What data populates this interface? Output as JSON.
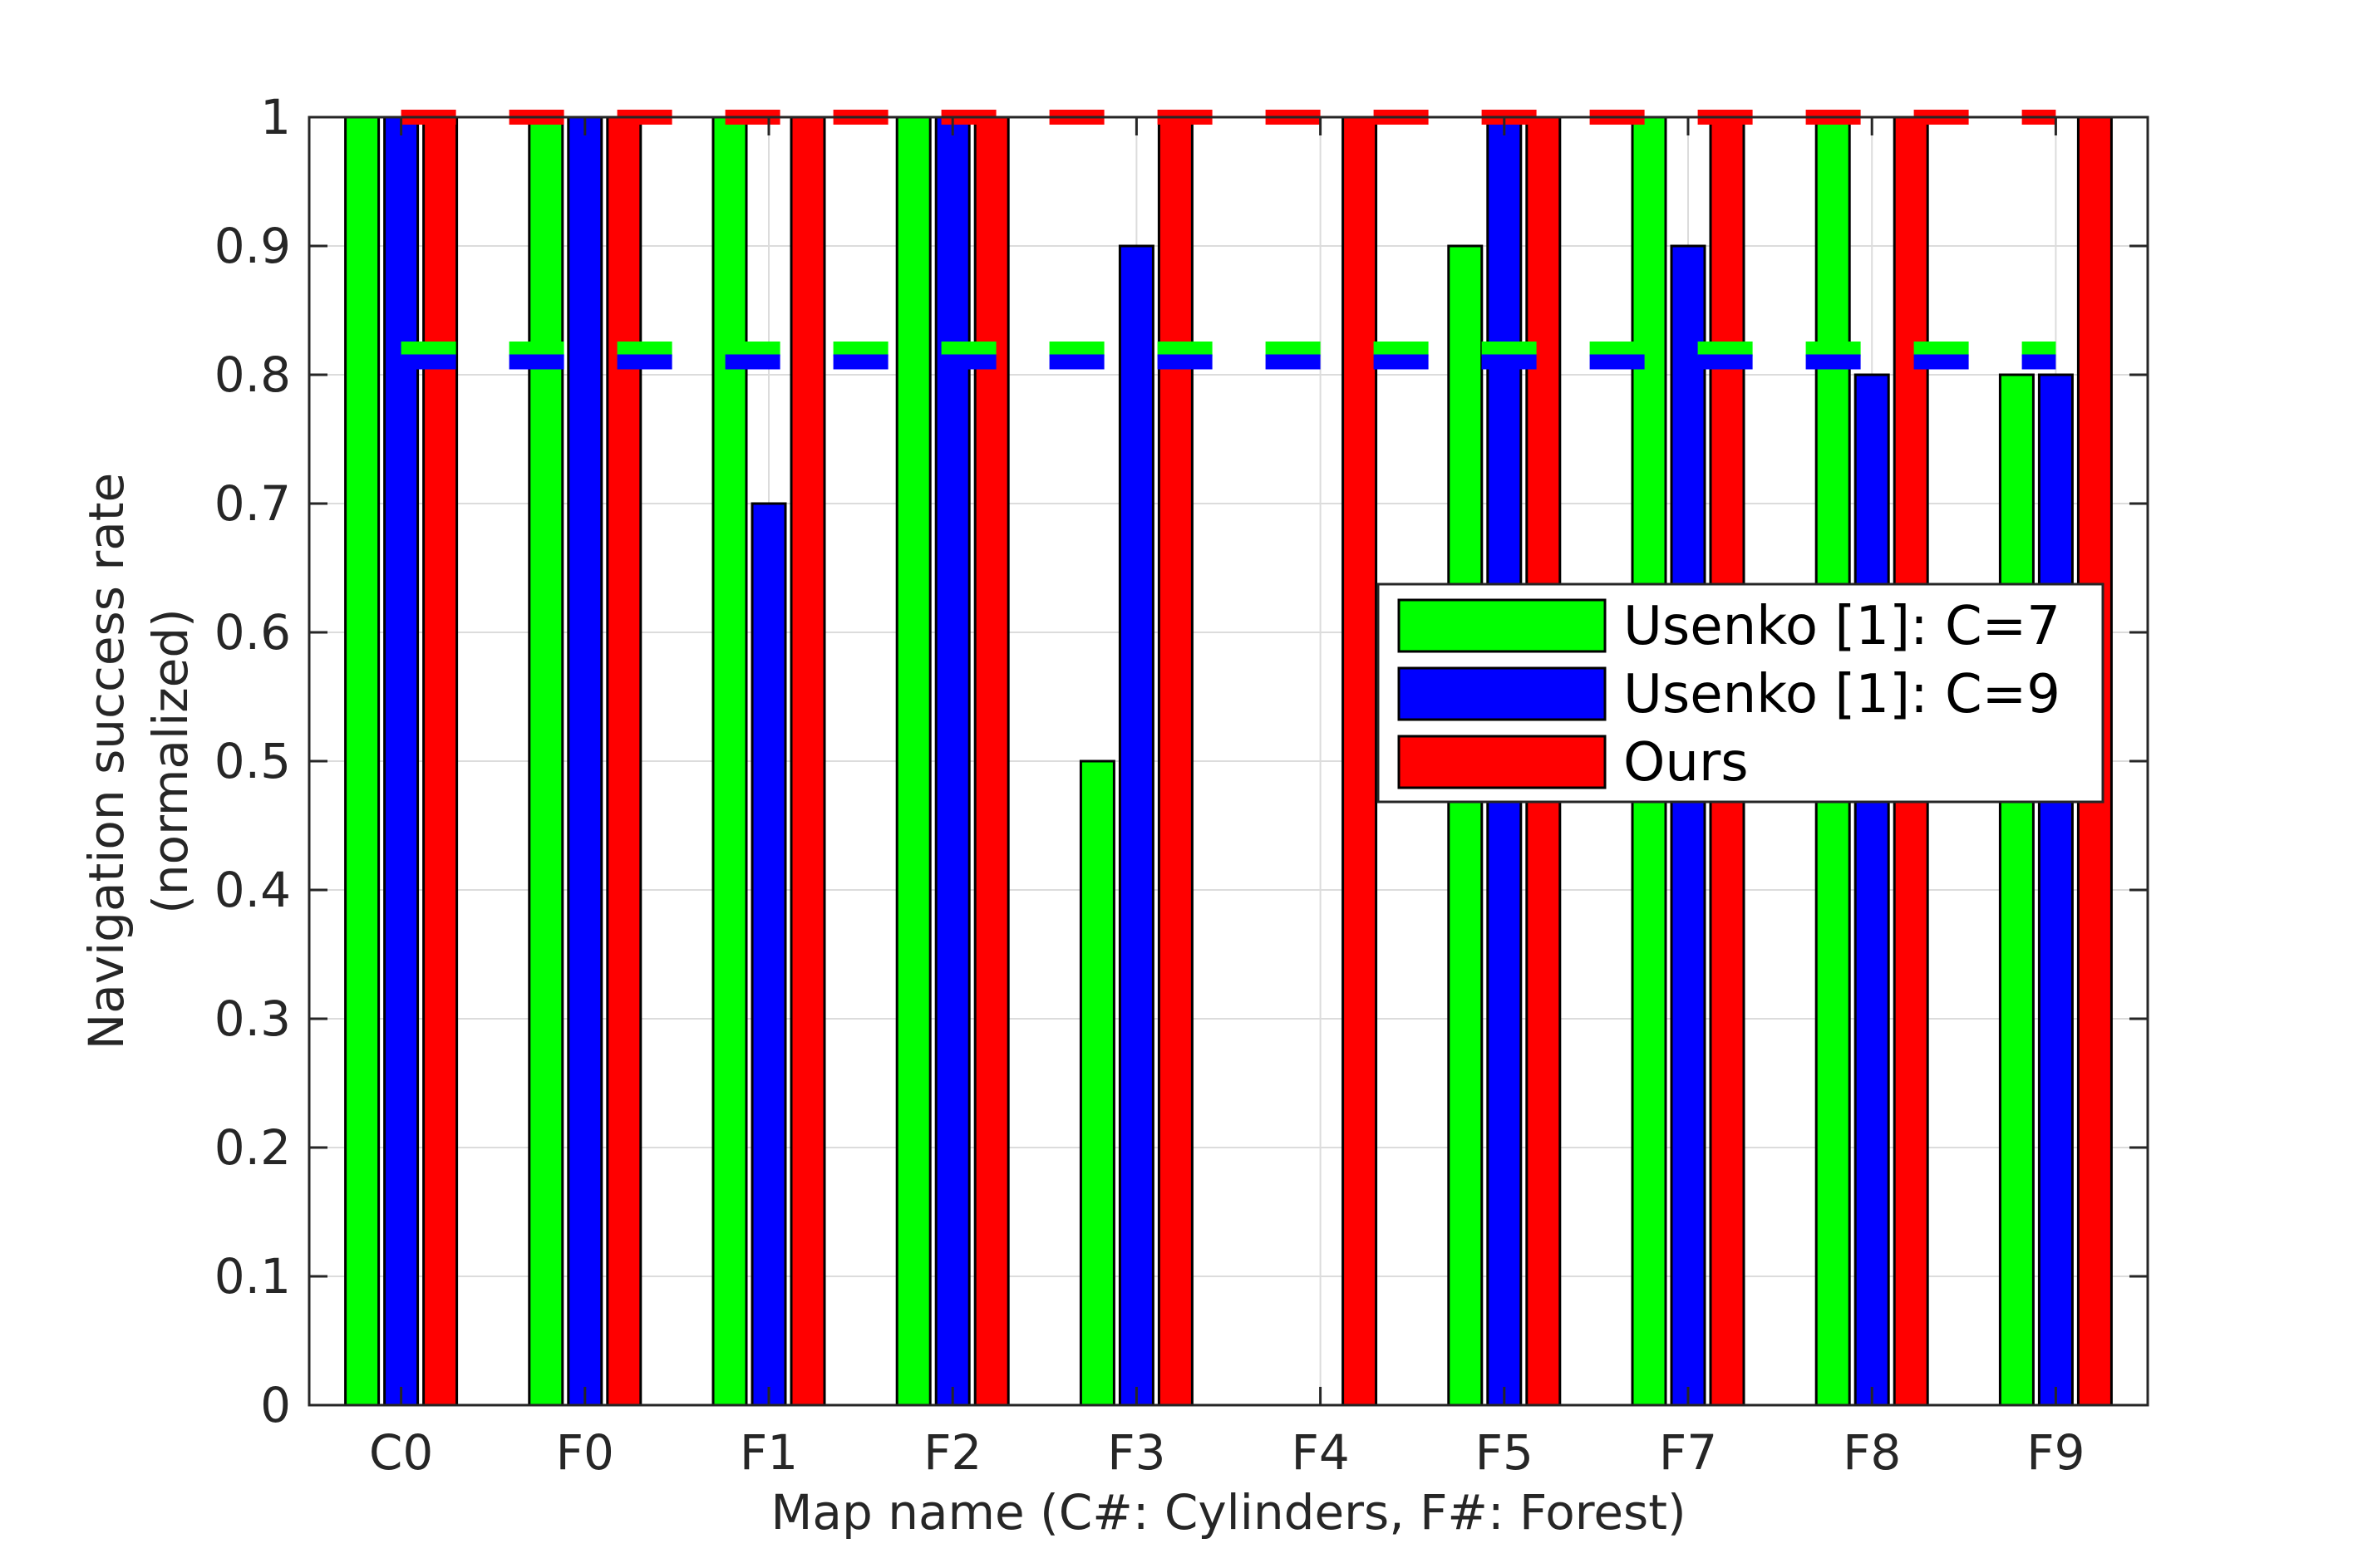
{
  "chart_data": {
    "type": "bar",
    "xlabel": "Map name (C#: Cylinders, F#: Forest)",
    "ylabel": [
      "Navigation success rate",
      "(normalized)"
    ],
    "ylim": [
      0,
      1
    ],
    "yticks": [
      "0",
      "0.1",
      "0.2",
      "0.3",
      "0.4",
      "0.5",
      "0.6",
      "0.7",
      "0.8",
      "0.9",
      "1"
    ],
    "categories": [
      "C0",
      "F0",
      "F1",
      "F2",
      "F3",
      "F4",
      "F5",
      "F7",
      "F8",
      "F9"
    ],
    "grid": true,
    "legend_position": "right",
    "series": [
      {
        "name": "Usenko [1]: C=7",
        "color": "#00ff00",
        "values": [
          1.0,
          1.0,
          1.0,
          1.0,
          0.5,
          0.0,
          0.9,
          1.0,
          1.0,
          0.8
        ],
        "mean": 0.82
      },
      {
        "name": "Usenko [1]: C=9",
        "color": "#0000ff",
        "values": [
          1.0,
          1.0,
          0.7,
          1.0,
          0.9,
          0.0,
          1.0,
          0.9,
          0.8,
          0.8
        ],
        "mean": 0.81
      },
      {
        "name": "Ours",
        "color": "#ff0000",
        "values": [
          1.0,
          1.0,
          1.0,
          1.0,
          1.0,
          1.0,
          1.0,
          1.0,
          1.0,
          1.0
        ],
        "mean": 1.0
      }
    ]
  }
}
